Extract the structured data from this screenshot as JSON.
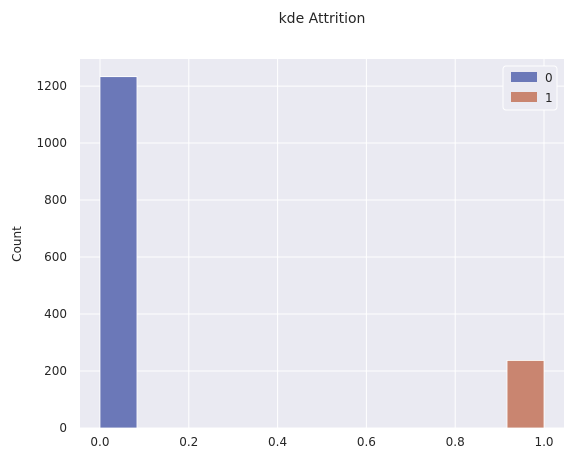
{
  "chart_data": {
    "type": "bar",
    "title": "kde Attrition",
    "xlabel": "",
    "ylabel": "Count",
    "xlim": [
      -0.045,
      1.045
    ],
    "ylim": [
      0,
      1295
    ],
    "xticks": [
      0.0,
      0.2,
      0.4,
      0.6,
      0.8,
      1.0
    ],
    "xtick_labels": [
      "0.0",
      "0.2",
      "0.4",
      "0.6",
      "0.8",
      "1.0"
    ],
    "yticks": [
      0,
      200,
      400,
      600,
      800,
      1000,
      1200
    ],
    "ytick_labels": [
      "0",
      "200",
      "400",
      "600",
      "800",
      "1000",
      "1200"
    ],
    "grid": true,
    "legend_position": "top-right",
    "bar_width": 0.0833,
    "series": [
      {
        "name": "0",
        "color": "#6b78b8",
        "bars": [
          {
            "x_start": 0.0,
            "value": 1233
          }
        ]
      },
      {
        "name": "1",
        "color": "#c98570",
        "bars": [
          {
            "x_start": 0.9167,
            "value": 237
          }
        ]
      }
    ]
  }
}
